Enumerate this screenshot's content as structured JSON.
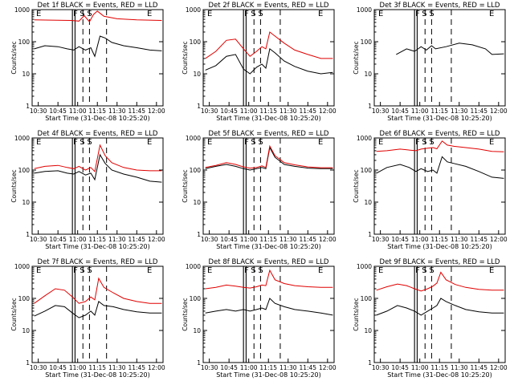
{
  "figure": {
    "xlabel": "Start Time (31-Dec-08 10:25:20)",
    "ylabel": "Counts/sec",
    "x_ticks": [
      "10:30",
      "10:45",
      "11:00",
      "11:15",
      "11:30",
      "11:45",
      "12:00"
    ],
    "y_ticks": [
      "1",
      "10",
      "100",
      "1000"
    ],
    "flag_labels": [
      "E",
      "F",
      "S",
      "S",
      "E"
    ],
    "colors": {
      "events": "#000000",
      "lld": "#e00000",
      "axes": "#000000"
    }
  },
  "chart_data": [
    {
      "type": "line",
      "title": "Det 1f BLACK = Events, RED = LLD",
      "xlim": [
        "10:25:20",
        "12:05"
      ],
      "ylim": [
        1,
        1000
      ],
      "yscale": "log",
      "grid": false,
      "flags": {
        "F": [
          "10:56",
          "10:58"
        ],
        "S": [
          "11:04",
          "11:09"
        ],
        "E": "11:22"
      },
      "series": [
        {
          "name": "Events",
          "color": "#000000",
          "x": [
            "10:27",
            "10:35",
            "10:45",
            "10:52",
            "10:57",
            "11:01",
            "11:06",
            "11:10",
            "11:13",
            "11:17",
            "11:21",
            "11:26",
            "11:35",
            "11:45",
            "11:55",
            "12:04"
          ],
          "y": [
            60,
            75,
            70,
            60,
            55,
            70,
            55,
            65,
            35,
            150,
            130,
            95,
            75,
            65,
            55,
            52
          ]
        },
        {
          "name": "LLD",
          "color": "#e00000",
          "x": [
            "10:27",
            "10:40",
            "10:55",
            "11:01",
            "11:05",
            "11:09",
            "11:12",
            "11:15",
            "11:20",
            "11:30",
            "11:45",
            "12:04"
          ],
          "y": [
            480,
            470,
            460,
            440,
            650,
            420,
            700,
            900,
            620,
            520,
            480,
            460
          ]
        }
      ]
    },
    {
      "type": "line",
      "title": "Det 2f BLACK = Events, RED = LLD",
      "xlim": [
        "10:25:20",
        "12:05"
      ],
      "ylim": [
        1,
        1000
      ],
      "yscale": "log",
      "grid": false,
      "flags": {
        "F": [
          "10:56",
          "10:58"
        ],
        "S": [
          "11:04",
          "11:09"
        ],
        "E": "11:24"
      },
      "series": [
        {
          "name": "Events",
          "color": "#000000",
          "x": [
            "10:27",
            "10:35",
            "10:43",
            "10:50",
            "10:56",
            "11:01",
            "11:06",
            "11:10",
            "11:13",
            "11:16",
            "11:20",
            "11:27",
            "11:35",
            "11:45",
            "11:55",
            "12:04"
          ],
          "y": [
            13,
            18,
            35,
            40,
            14,
            10,
            16,
            20,
            15,
            60,
            45,
            25,
            17,
            12,
            10,
            11
          ]
        },
        {
          "name": "LLD",
          "color": "#e00000",
          "x": [
            "10:27",
            "10:35",
            "10:43",
            "10:50",
            "10:56",
            "11:01",
            "11:06",
            "11:10",
            "11:13",
            "11:16",
            "11:20",
            "11:27",
            "11:35",
            "11:45",
            "11:55",
            "12:04"
          ],
          "y": [
            30,
            50,
            110,
            120,
            60,
            35,
            50,
            70,
            60,
            200,
            150,
            90,
            55,
            40,
            30,
            30
          ]
        }
      ]
    },
    {
      "type": "line",
      "title": "Det 3f BLACK = Events, RED = LLD",
      "xlim": [
        "10:25:20",
        "12:05"
      ],
      "ylim": [
        1,
        1000
      ],
      "yscale": "log",
      "grid": false,
      "flags": {
        "F": [
          "10:56",
          "10:58"
        ],
        "S": [
          "11:04",
          "11:09"
        ],
        "E": "11:24"
      },
      "series": [
        {
          "name": "Events",
          "color": "#000000",
          "x": [
            "10:42",
            "10:50",
            "10:56",
            "11:01",
            "11:05",
            "11:09",
            "11:12",
            "11:20",
            "11:30",
            "11:40",
            "11:50",
            "11:55",
            "12:04"
          ],
          "y": [
            40,
            60,
            50,
            70,
            55,
            75,
            60,
            70,
            90,
            80,
            60,
            40,
            42
          ]
        }
      ]
    },
    {
      "type": "line",
      "title": "Det 4f BLACK = Events, RED = LLD",
      "xlim": [
        "10:25:20",
        "12:05"
      ],
      "ylim": [
        1,
        1000
      ],
      "yscale": "log",
      "grid": false,
      "flags": {
        "F": [
          "10:56",
          "10:58"
        ],
        "S": [
          "11:04",
          "11:09"
        ],
        "E": "11:22"
      },
      "series": [
        {
          "name": "Events",
          "color": "#000000",
          "x": [
            "10:27",
            "10:35",
            "10:45",
            "10:52",
            "10:57",
            "11:01",
            "11:06",
            "11:10",
            "11:13",
            "11:17",
            "11:21",
            "11:26",
            "11:35",
            "11:45",
            "11:55",
            "12:04"
          ],
          "y": [
            80,
            90,
            95,
            80,
            75,
            90,
            70,
            80,
            50,
            300,
            160,
            100,
            75,
            60,
            45,
            42
          ]
        },
        {
          "name": "LLD",
          "color": "#e00000",
          "x": [
            "10:27",
            "10:35",
            "10:45",
            "10:52",
            "10:57",
            "11:01",
            "11:06",
            "11:10",
            "11:13",
            "11:17",
            "11:21",
            "11:26",
            "11:35",
            "11:45",
            "11:55",
            "12:04"
          ],
          "y": [
            110,
            130,
            140,
            120,
            110,
            130,
            100,
            120,
            90,
            600,
            280,
            170,
            120,
            100,
            95,
            95
          ]
        }
      ]
    },
    {
      "type": "line",
      "title": "Det 5f BLACK = Events, RED = LLD",
      "xlim": [
        "10:25:20",
        "12:05"
      ],
      "ylim": [
        1,
        1000
      ],
      "yscale": "log",
      "grid": false,
      "flags": {
        "F": [
          "10:56",
          "10:58"
        ],
        "S": [
          "11:04",
          "11:09"
        ],
        "E": "11:24"
      },
      "series": [
        {
          "name": "Events",
          "color": "#000000",
          "x": [
            "10:27",
            "10:35",
            "10:43",
            "10:50",
            "10:56",
            "11:01",
            "11:06",
            "11:10",
            "11:13",
            "11:16",
            "11:20",
            "11:27",
            "11:35",
            "11:45",
            "11:55",
            "12:04"
          ],
          "y": [
            110,
            130,
            150,
            130,
            110,
            100,
            110,
            120,
            110,
            500,
            250,
            150,
            130,
            115,
            110,
            110
          ]
        },
        {
          "name": "LLD",
          "color": "#e00000",
          "x": [
            "10:27",
            "10:35",
            "10:43",
            "10:50",
            "10:56",
            "11:01",
            "11:06",
            "11:10",
            "11:13",
            "11:16",
            "11:20",
            "11:27",
            "11:35",
            "11:45",
            "11:55",
            "12:04"
          ],
          "y": [
            120,
            140,
            170,
            150,
            125,
            115,
            120,
            135,
            120,
            560,
            280,
            170,
            145,
            125,
            118,
            118
          ]
        }
      ]
    },
    {
      "type": "line",
      "title": "Det 6f BLACK = Events, RED = LLD",
      "xlim": [
        "10:25:20",
        "12:05"
      ],
      "ylim": [
        1,
        1000
      ],
      "yscale": "log",
      "grid": false,
      "flags": {
        "F": [
          "10:56",
          "10:58"
        ],
        "S": [
          "11:04",
          "11:09"
        ],
        "E": "11:24"
      },
      "series": [
        {
          "name": "Events",
          "color": "#000000",
          "x": [
            "10:27",
            "10:35",
            "10:45",
            "10:52",
            "10:57",
            "11:01",
            "11:06",
            "11:10",
            "11:13",
            "11:17",
            "11:21",
            "11:26",
            "11:35",
            "11:45",
            "11:55",
            "12:04"
          ],
          "y": [
            80,
            120,
            150,
            120,
            90,
            110,
            90,
            100,
            80,
            260,
            180,
            160,
            130,
            90,
            60,
            55
          ]
        },
        {
          "name": "LLD",
          "color": "#e00000",
          "x": [
            "10:27",
            "10:35",
            "10:45",
            "10:52",
            "10:57",
            "11:01",
            "11:06",
            "11:10",
            "11:13",
            "11:17",
            "11:21",
            "11:26",
            "11:35",
            "11:45",
            "11:55",
            "12:04"
          ],
          "y": [
            380,
            400,
            450,
            420,
            400,
            450,
            480,
            500,
            460,
            800,
            600,
            550,
            500,
            450,
            380,
            370
          ]
        }
      ]
    },
    {
      "type": "line",
      "title": "Det 7f BLACK = Events, RED = LLD",
      "xlim": [
        "10:25:20",
        "12:05"
      ],
      "ylim": [
        1,
        1000
      ],
      "yscale": "log",
      "grid": false,
      "flags": {
        "F": [
          "10:56",
          "10:58"
        ],
        "S": [
          "11:04",
          "11:09"
        ],
        "E": "11:22"
      },
      "series": [
        {
          "name": "Events",
          "color": "#000000",
          "x": [
            "10:27",
            "10:35",
            "10:43",
            "10:50",
            "10:56",
            "11:01",
            "11:06",
            "11:10",
            "11:13",
            "11:16",
            "11:20",
            "11:27",
            "11:35",
            "11:45",
            "11:55",
            "12:04"
          ],
          "y": [
            28,
            40,
            60,
            55,
            35,
            25,
            30,
            40,
            30,
            80,
            60,
            55,
            45,
            38,
            35,
            35
          ]
        },
        {
          "name": "LLD",
          "color": "#e00000",
          "x": [
            "10:27",
            "10:35",
            "10:43",
            "10:50",
            "10:56",
            "11:01",
            "11:06",
            "11:10",
            "11:13",
            "11:16",
            "11:20",
            "11:27",
            "11:35",
            "11:45",
            "11:55",
            "12:04"
          ],
          "y": [
            70,
            120,
            200,
            180,
            110,
            70,
            80,
            110,
            90,
            420,
            220,
            150,
            100,
            80,
            70,
            70
          ]
        }
      ]
    },
    {
      "type": "line",
      "title": "Det 8f BLACK = Events, RED = LLD",
      "xlim": [
        "10:25:20",
        "12:05"
      ],
      "ylim": [
        1,
        1000
      ],
      "yscale": "log",
      "grid": false,
      "flags": {
        "F": [
          "10:56",
          "10:58"
        ],
        "S": [
          "11:04",
          "11:09"
        ],
        "E": "11:24"
      },
      "series": [
        {
          "name": "Events",
          "color": "#000000",
          "x": [
            "10:27",
            "10:35",
            "10:43",
            "10:50",
            "10:56",
            "11:01",
            "11:06",
            "11:10",
            "11:13",
            "11:16",
            "11:20",
            "11:27",
            "11:35",
            "11:45",
            "11:55",
            "12:04"
          ],
          "y": [
            35,
            40,
            45,
            40,
            45,
            40,
            45,
            50,
            45,
            100,
            70,
            55,
            45,
            40,
            35,
            30
          ]
        },
        {
          "name": "LLD",
          "color": "#e00000",
          "x": [
            "10:27",
            "10:35",
            "10:43",
            "10:50",
            "10:56",
            "11:01",
            "11:06",
            "11:10",
            "11:13",
            "11:16",
            "11:20",
            "11:27",
            "11:35",
            "11:45",
            "11:55",
            "12:04"
          ],
          "y": [
            200,
            220,
            260,
            240,
            220,
            210,
            230,
            260,
            250,
            750,
            380,
            290,
            250,
            230,
            220,
            220
          ]
        }
      ]
    },
    {
      "type": "line",
      "title": "Det 9f BLACK = Events, RED = LLD",
      "xlim": [
        "10:25:20",
        "12:05"
      ],
      "ylim": [
        1,
        1000
      ],
      "yscale": "log",
      "grid": false,
      "flags": {
        "F": [
          "10:56",
          "10:58"
        ],
        "S": [
          "11:04",
          "11:09"
        ],
        "E": "11:24"
      },
      "series": [
        {
          "name": "Events",
          "color": "#000000",
          "x": [
            "10:27",
            "10:35",
            "10:43",
            "10:50",
            "10:56",
            "11:01",
            "11:06",
            "11:10",
            "11:13",
            "11:16",
            "11:20",
            "11:27",
            "11:35",
            "11:45",
            "11:55",
            "12:04"
          ],
          "y": [
            30,
            40,
            60,
            50,
            40,
            30,
            40,
            50,
            60,
            100,
            80,
            60,
            45,
            38,
            35,
            35
          ]
        },
        {
          "name": "LLD",
          "color": "#e00000",
          "x": [
            "10:27",
            "10:35",
            "10:43",
            "10:50",
            "10:56",
            "11:01",
            "11:06",
            "11:10",
            "11:13",
            "11:16",
            "11:20",
            "11:27",
            "11:35",
            "11:45",
            "11:55",
            "12:04"
          ],
          "y": [
            180,
            230,
            280,
            250,
            200,
            170,
            200,
            240,
            300,
            650,
            380,
            270,
            220,
            190,
            180,
            180
          ]
        }
      ]
    }
  ]
}
